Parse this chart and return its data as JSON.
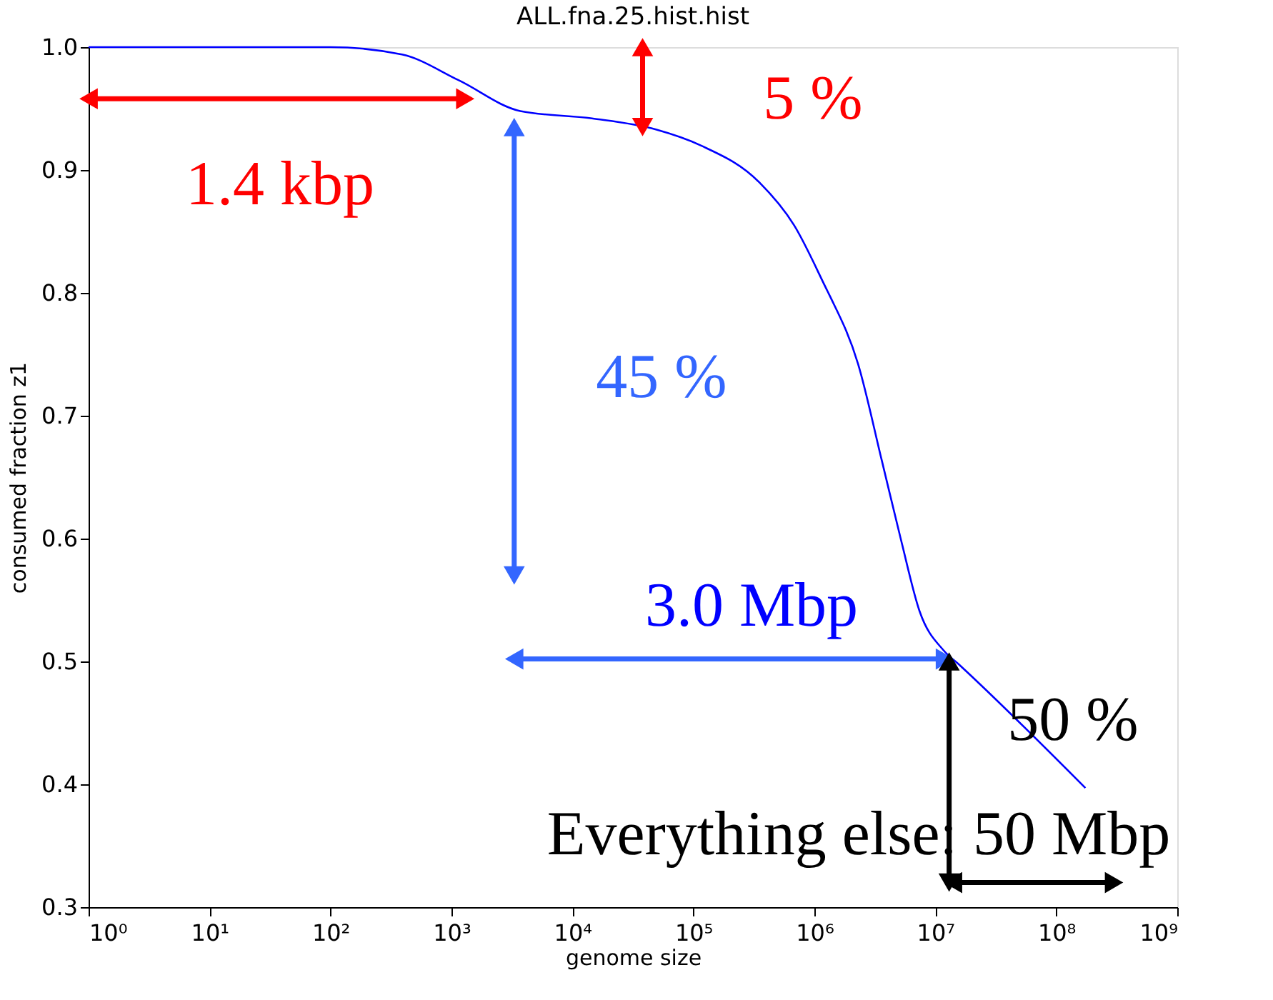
{
  "chart_data": {
    "type": "line",
    "title": "ALL.fna.25.hist.hist",
    "xlabel": "genome size",
    "ylabel": "consumed fraction z1",
    "log": "x",
    "x": [
      1,
      100,
      390,
      1150,
      3700,
      14500,
      49000,
      115000,
      350000,
      680000,
      1260000,
      1350000,
      2300000,
      3600000,
      5200000,
      7400000,
      11700000,
      15500000,
      174000000
    ],
    "series": [
      {
        "color": "#0000ff",
        "values": [
          1.0,
          1.0,
          0.994,
          0.973,
          0.948,
          0.942,
          0.933,
          0.92,
          0.89,
          0.855,
          0.803,
          0.797,
          0.742,
          0.664,
          0.599,
          0.541,
          0.509,
          0.498,
          0.397
        ]
      }
    ],
    "xlim": [
      1,
      1000000000
    ],
    "xticks": [
      {
        "value": 1,
        "label": "10⁰"
      },
      {
        "value": 10,
        "label": "10¹"
      },
      {
        "value": 100,
        "label": "10²"
      },
      {
        "value": 1000,
        "label": "10³"
      },
      {
        "value": 10000,
        "label": "10⁴"
      },
      {
        "value": 100000,
        "label": "10⁵"
      },
      {
        "value": 1000000,
        "label": "10⁶"
      },
      {
        "value": 10000000,
        "label": "10⁷"
      },
      {
        "value": 100000000,
        "label": "10⁸"
      },
      {
        "value": 1000000000,
        "label": "10⁹"
      }
    ],
    "ylim": [
      0.3,
      1.0
    ],
    "yticks": [
      0.3,
      0.4,
      0.5,
      0.6,
      0.7,
      0.8,
      0.9,
      {
        "value": 1,
        "label": "1.0"
      }
    ],
    "grid": false,
    "line_style": "solid",
    "marker": "none",
    "annotations": [
      "1.4 kbp",
      "5 %",
      "45 %",
      "3.0 Mbp",
      "50 %",
      "Everything else: 50 Mbp"
    ]
  }
}
